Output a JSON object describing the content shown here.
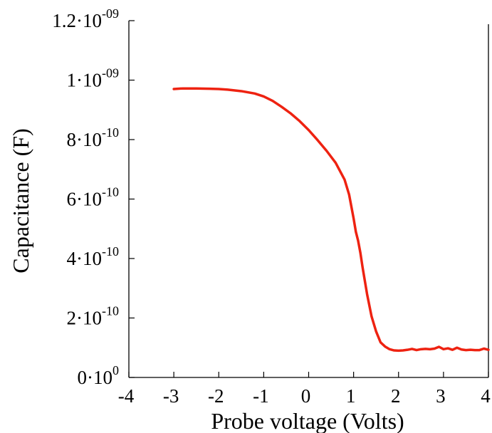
{
  "chart_data": {
    "type": "line",
    "title": "",
    "xlabel": "Probe voltage (Volts)",
    "ylabel": "Capacitance (F)",
    "xlim": [
      -4,
      4
    ],
    "ylim": [
      0,
      1.2e-09
    ],
    "grid": false,
    "legend": "none",
    "x_ticks": [
      {
        "value": -4,
        "label": "-4"
      },
      {
        "value": -3,
        "label": "-3"
      },
      {
        "value": -2,
        "label": "-2"
      },
      {
        "value": -1,
        "label": "-1"
      },
      {
        "value": 0,
        "label": "0"
      },
      {
        "value": 1,
        "label": "1"
      },
      {
        "value": 2,
        "label": "2"
      },
      {
        "value": 3,
        "label": "3"
      },
      {
        "value": 4,
        "label": "4"
      }
    ],
    "y_ticks": [
      {
        "value": 0,
        "mantissa": "0·10",
        "exp": "0"
      },
      {
        "value": 2e-10,
        "mantissa": "2·10",
        "exp": "-10"
      },
      {
        "value": 4e-10,
        "mantissa": "4·10",
        "exp": "-10"
      },
      {
        "value": 6e-10,
        "mantissa": "6·10",
        "exp": "-10"
      },
      {
        "value": 8e-10,
        "mantissa": "8·10",
        "exp": "-10"
      },
      {
        "value": 1e-09,
        "mantissa": "1·10",
        "exp": "-09"
      },
      {
        "value": 1.2e-09,
        "mantissa": "1.2·10",
        "exp": "-09"
      }
    ],
    "series": [
      {
        "color": "#ee2211",
        "x": [
          -3.0,
          -2.8,
          -2.5,
          -2.2,
          -2.0,
          -1.8,
          -1.5,
          -1.2,
          -1.0,
          -0.8,
          -0.6,
          -0.4,
          -0.2,
          0.0,
          0.2,
          0.4,
          0.6,
          0.8,
          0.9,
          1.0,
          1.05,
          1.1,
          1.15,
          1.2,
          1.3,
          1.4,
          1.5,
          1.6,
          1.7,
          1.8,
          1.9,
          2.0,
          2.1,
          2.2,
          2.3,
          2.4,
          2.5,
          2.6,
          2.7,
          2.8,
          2.9,
          3.0,
          3.1,
          3.2,
          3.3,
          3.4,
          3.5,
          3.6,
          3.7,
          3.8,
          3.9,
          4.0
        ],
        "y": [
          9.7e-10,
          9.72e-10,
          9.72e-10,
          9.71e-10,
          9.7e-10,
          9.68e-10,
          9.63e-10,
          9.55e-10,
          9.45e-10,
          9.3e-10,
          9.1e-10,
          8.88e-10,
          8.62e-10,
          8.32e-10,
          7.98e-10,
          7.62e-10,
          7.22e-10,
          6.65e-10,
          6.15e-10,
          5.35e-10,
          4.9e-10,
          4.6e-10,
          4.2e-10,
          3.7e-10,
          2.8e-10,
          2.05e-10,
          1.55e-10,
          1.18e-10,
          1.04e-10,
          9.5e-11,
          9.1e-11,
          9e-11,
          9.1e-11,
          9.3e-11,
          9.6e-11,
          9.2e-11,
          9.5e-11,
          9.6e-11,
          9.5e-11,
          9.7e-11,
          1.03e-10,
          9.5e-11,
          9.8e-11,
          9.3e-11,
          1e-10,
          9.4e-11,
          9.2e-11,
          9.3e-11,
          9.2e-11,
          9.2e-11,
          9.7e-11,
          9.3e-11
        ]
      }
    ]
  }
}
